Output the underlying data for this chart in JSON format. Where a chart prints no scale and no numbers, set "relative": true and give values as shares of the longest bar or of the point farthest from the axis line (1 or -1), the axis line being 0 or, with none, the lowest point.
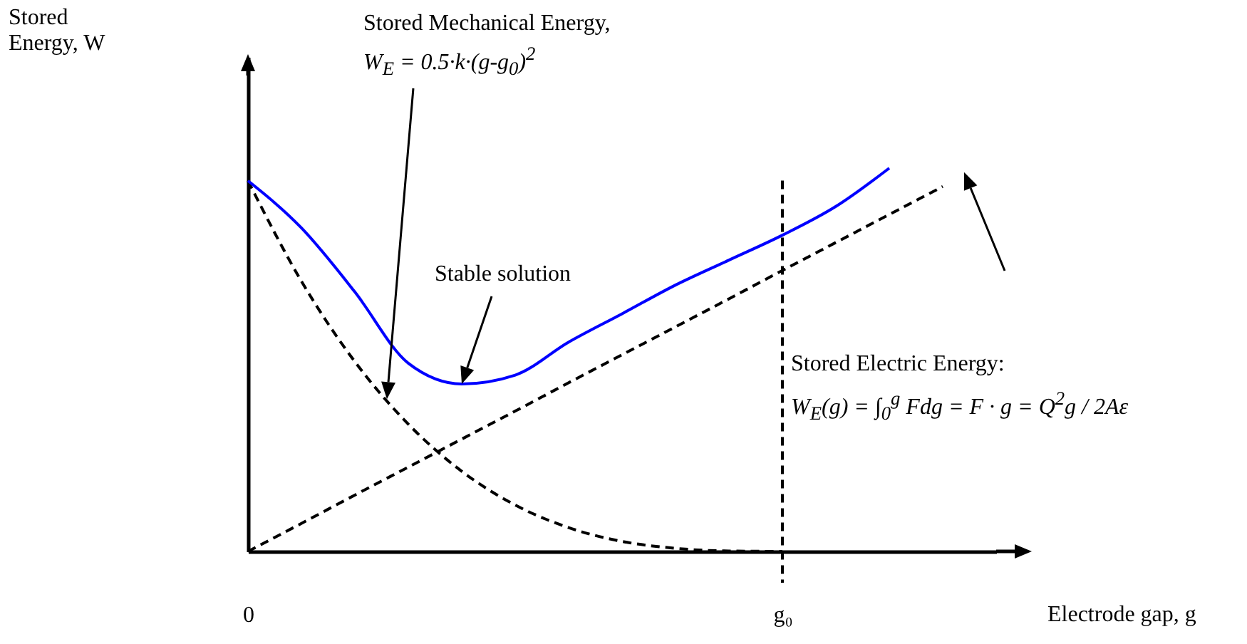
{
  "chart_data": {
    "type": "line",
    "relative": true,
    "xlabel": "Electrode gap, g",
    "categories": [
      "0",
      null,
      null,
      null,
      null,
      null,
      null,
      null,
      null,
      null,
      "g₀",
      null,
      null,
      null,
      null
    ],
    "grid": false,
    "marker": "none",
    "series": [
      {
        "color": "#000000",
        "line_style": "dashed",
        "values": [
          0.967,
          0.705,
          0.495,
          0.332,
          0.209,
          0.121,
          0.062,
          0.026,
          0.008,
          0.001,
          0,
          null,
          null,
          null,
          null
        ]
      },
      {
        "color": "#000000",
        "line_style": "dashed",
        "values": [
          0,
          0.073,
          0.147,
          0.22,
          0.293,
          0.366,
          0.44,
          0.513,
          0.586,
          0.659,
          0.733,
          0.806,
          0.879,
          0.952,
          null
        ]
      },
      {
        "color": "#0000ff",
        "line_style": "solid",
        "values": [
          0.967,
          0.844,
          0.677,
          0.491,
          0.437,
          0.46,
          0.546,
          0.62,
          0.695,
          0.76,
          0.825,
          0.9,
          1,
          null,
          null
        ]
      }
    ],
    "ref_lines": [
      {
        "axis": "x",
        "value": "g₀",
        "line_style": "dashed",
        "color": "#000000"
      }
    ],
    "annotations": [
      "Stored Mechanical Energy,",
      "W$_{E}$ = 0.5·k·(g-g$_{0}$)$^{2}$",
      "Stable solution",
      "Stored Electric Energy:",
      "W$_{E}$(g) = ∫$_{0}$$^{g}$ Fdg = F · g = Q$^{2}$g / 2Aε",
      "Stored Energy, W"
    ]
  }
}
